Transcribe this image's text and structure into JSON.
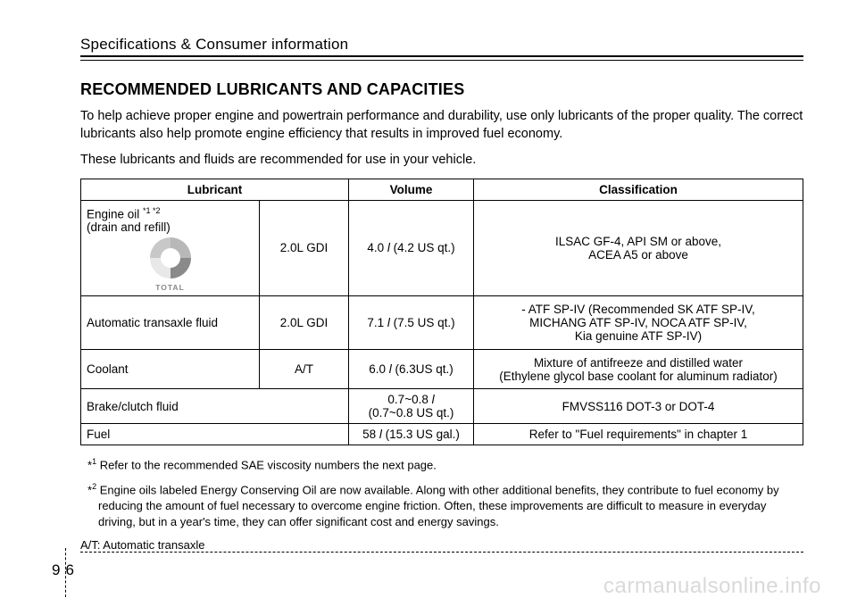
{
  "section_header": "Specifications & Consumer information",
  "title": "RECOMMENDED LUBRICANTS AND CAPACITIES",
  "para1": "To help achieve proper engine and powertrain performance and durability, use only lubricants of the proper quality. The correct lubricants also help promote engine efficiency that results in improved fuel economy.",
  "para2": "These lubricants and fluids are recommended for use in your vehicle.",
  "table": {
    "headers": {
      "lubricant": "Lubricant",
      "volume": "Volume",
      "classification": "Classification"
    },
    "rows": [
      {
        "lube_label": "Engine oil ",
        "lube_sup": "*1 *2",
        "lube_sub": "(drain and refill)",
        "logo_text": "TOTAL",
        "spec": "2.0L GDI",
        "volume": "4.0 l (4.2 US qt.)",
        "classification": "ILSAC GF-4, API SM or above,\nACEA A5 or above"
      },
      {
        "lube_label": "Automatic transaxle fluid",
        "spec": "2.0L GDI",
        "volume": "7.1 l (7.5 US qt.)",
        "classification": "- ATF SP-IV (Recommended SK ATF SP-IV,\nMICHANG ATF SP-IV, NOCA ATF SP-IV,\nKia genuine ATF SP-IV)"
      },
      {
        "lube_label": "Coolant",
        "spec": "A/T",
        "volume": "6.0 l (6.3US qt.)",
        "classification": "Mixture of antifreeze and distilled water\n(Ethylene glycol base coolant for aluminum radiator)"
      },
      {
        "lube_label": "Brake/clutch fluid",
        "volume": "0.7~0.8 l\n(0.7~0.8 US qt.)",
        "classification": "FMVSS116 DOT-3 or DOT-4"
      },
      {
        "lube_label": "Fuel",
        "volume": "58 l (15.3 US gal.)",
        "classification": "Refer to \"Fuel requirements\" in chapter 1"
      }
    ]
  },
  "footnote1_marker": "*",
  "footnote1_sup": "1",
  "footnote1_text": " Refer to the recommended SAE viscosity numbers the next page.",
  "footnote2_marker": "*",
  "footnote2_sup": "2",
  "footnote2_text": " Engine oils labeled Energy Conserving Oil are now available. Along with other additional benefits, they contribute to fuel economy by reducing the amount of fuel necessary to overcome engine friction. Often, these improvements are difficult to measure in everyday driving, but in a year's time, they can offer significant cost and energy savings.",
  "abbrev": "A/T: Automatic transaxle",
  "page_chapter": "9",
  "page_number": "6",
  "watermark": "carmanualsonline.info"
}
